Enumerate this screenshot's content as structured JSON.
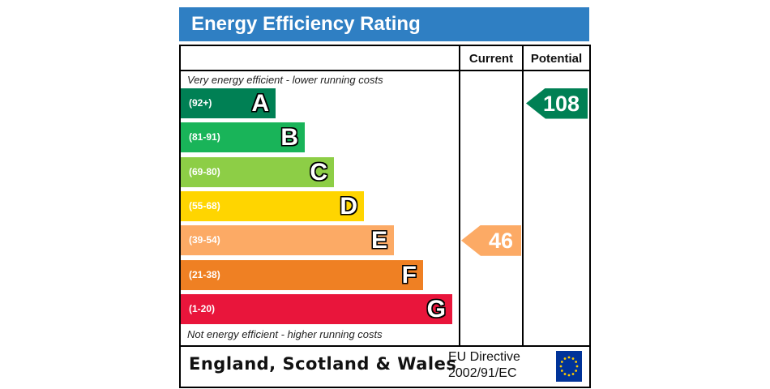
{
  "title": "Energy Efficiency Rating",
  "columns": {
    "current": "Current",
    "potential": "Potential"
  },
  "notes": {
    "top": "Very energy efficient - lower running costs",
    "bottom": "Not energy efficient - higher running costs"
  },
  "footer": {
    "region": "England, Scotland & Wales",
    "directive_line1": "EU Directive",
    "directive_line2": "2002/91/EC"
  },
  "chart_data": {
    "type": "bar",
    "categories": [
      "A",
      "B",
      "C",
      "D",
      "E",
      "F",
      "G"
    ],
    "bands": [
      {
        "letter": "A",
        "range": "(92+)",
        "color": "#008054"
      },
      {
        "letter": "B",
        "range": "(81-91)",
        "color": "#19b459"
      },
      {
        "letter": "C",
        "range": "(69-80)",
        "color": "#8dce46"
      },
      {
        "letter": "D",
        "range": "(55-68)",
        "color": "#ffd500"
      },
      {
        "letter": "E",
        "range": "(39-54)",
        "color": "#fcaa65"
      },
      {
        "letter": "F",
        "range": "(21-38)",
        "color": "#ef8023"
      },
      {
        "letter": "G",
        "range": "(1-20)",
        "color": "#e9153b"
      }
    ],
    "series": [
      {
        "name": "Current",
        "value": 46,
        "band": "E",
        "color": "#fcaa65"
      },
      {
        "name": "Potential",
        "value": 108,
        "band": "A",
        "color": "#008054"
      }
    ]
  }
}
